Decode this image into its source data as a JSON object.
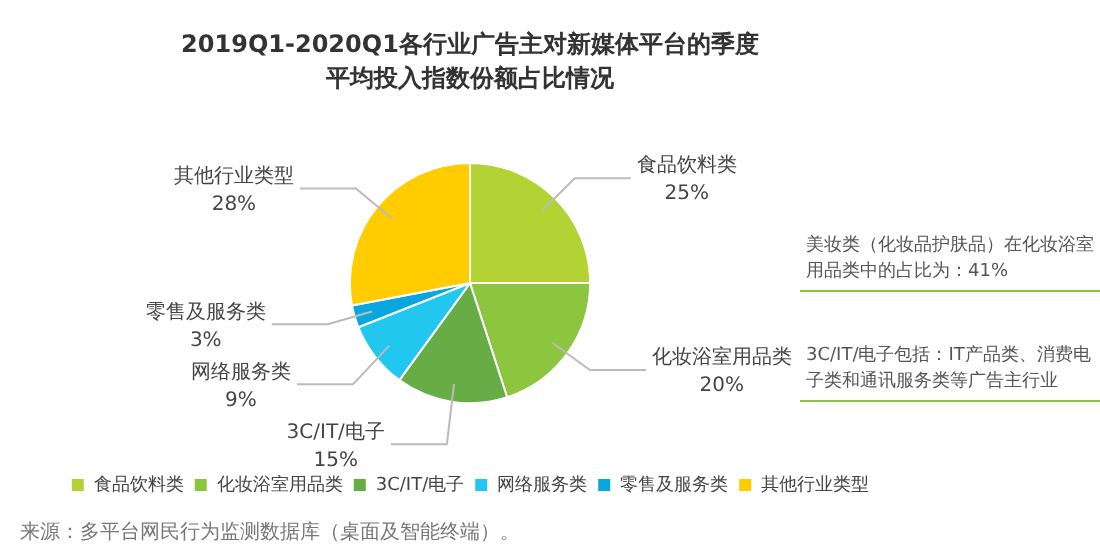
{
  "chart_data": {
    "type": "pie",
    "title": "2019Q1-2020Q1各行业广告主对新媒体平台的季度平均投入指数份额占比情况",
    "categories": [
      "食品饮料类",
      "化妆浴室用品类",
      "3C/IT/电子",
      "网络服务类",
      "零售及服务类",
      "其他行业类型"
    ],
    "values": [
      25,
      20,
      15,
      9,
      3,
      28
    ],
    "value_labels": [
      "25%",
      "20%",
      "15%",
      "9%",
      "3%",
      "28%"
    ],
    "colors": [
      "#b3d234",
      "#8cc63e",
      "#66ad45",
      "#22c7ef",
      "#0aa6e0",
      "#ffcc00"
    ],
    "legend": "bottom",
    "annotations": [
      "美妆类（化妆品护肤品）在化妆浴室用品类中的占比为：41%",
      "3C/IT/电子包括：IT产品类、消费电子类和通讯服务类等广告主行业",
      "来源：多平台网民行为监测数据库（桌面及智能终端）。"
    ]
  }
}
